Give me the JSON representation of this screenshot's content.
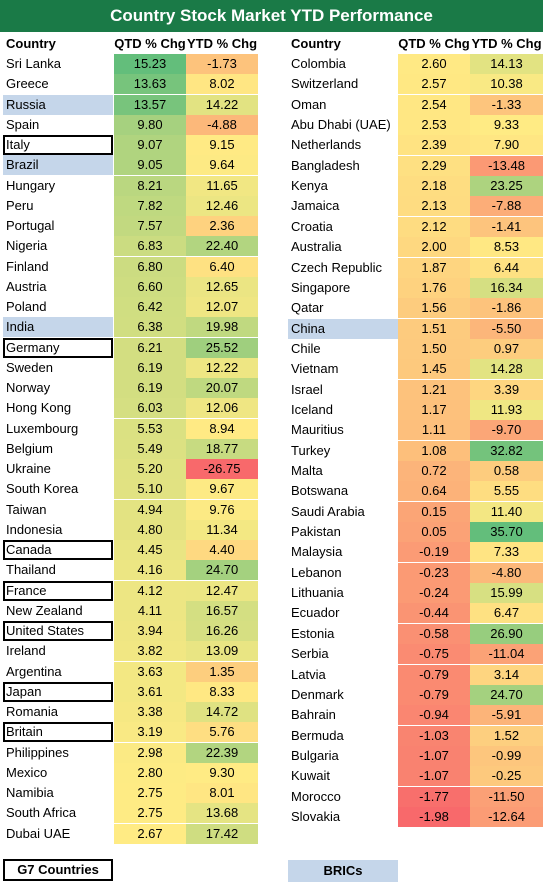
{
  "chart_data": {
    "type": "table",
    "title": "Country Stock Market YTD Performance",
    "columns": [
      "Country",
      "QTD % Chg",
      "YTD % Chg"
    ],
    "left_rows": [
      {
        "country": "Sri Lanka",
        "qtd": "15.23",
        "ytd": "-1.73",
        "group": ""
      },
      {
        "country": "Greece",
        "qtd": "13.63",
        "ytd": "8.02",
        "group": ""
      },
      {
        "country": "Russia",
        "qtd": "13.57",
        "ytd": "14.22",
        "group": "bric"
      },
      {
        "country": "Spain",
        "qtd": "9.80",
        "ytd": "-4.88",
        "group": ""
      },
      {
        "country": "Italy",
        "qtd": "9.07",
        "ytd": "9.15",
        "group": "g7"
      },
      {
        "country": "Brazil",
        "qtd": "9.05",
        "ytd": "9.64",
        "group": "bric"
      },
      {
        "country": "Hungary",
        "qtd": "8.21",
        "ytd": "11.65",
        "group": ""
      },
      {
        "country": "Peru",
        "qtd": "7.82",
        "ytd": "12.46",
        "group": ""
      },
      {
        "country": "Portugal",
        "qtd": "7.57",
        "ytd": "2.36",
        "group": ""
      },
      {
        "country": "Nigeria",
        "qtd": "6.83",
        "ytd": "22.40",
        "group": ""
      },
      {
        "country": "Finland",
        "qtd": "6.80",
        "ytd": "6.40",
        "group": ""
      },
      {
        "country": "Austria",
        "qtd": "6.60",
        "ytd": "12.65",
        "group": ""
      },
      {
        "country": "Poland",
        "qtd": "6.42",
        "ytd": "12.07",
        "group": ""
      },
      {
        "country": "India",
        "qtd": "6.38",
        "ytd": "19.98",
        "group": "bric"
      },
      {
        "country": "Germany",
        "qtd": "6.21",
        "ytd": "25.52",
        "group": "g7"
      },
      {
        "country": "Sweden",
        "qtd": "6.19",
        "ytd": "12.22",
        "group": ""
      },
      {
        "country": "Norway",
        "qtd": "6.19",
        "ytd": "20.07",
        "group": ""
      },
      {
        "country": "Hong Kong",
        "qtd": "6.03",
        "ytd": "12.06",
        "group": ""
      },
      {
        "country": "Luxembourg",
        "qtd": "5.53",
        "ytd": "8.94",
        "group": ""
      },
      {
        "country": "Belgium",
        "qtd": "5.49",
        "ytd": "18.77",
        "group": ""
      },
      {
        "country": "Ukraine",
        "qtd": "5.20",
        "ytd": "-26.75",
        "group": ""
      },
      {
        "country": "South Korea",
        "qtd": "5.10",
        "ytd": "9.67",
        "group": ""
      },
      {
        "country": "Taiwan",
        "qtd": "4.94",
        "ytd": "9.76",
        "group": ""
      },
      {
        "country": "Indonesia",
        "qtd": "4.80",
        "ytd": "11.34",
        "group": ""
      },
      {
        "country": "Canada",
        "qtd": "4.45",
        "ytd": "4.40",
        "group": "g7"
      },
      {
        "country": "Thailand",
        "qtd": "4.16",
        "ytd": "24.70",
        "group": ""
      },
      {
        "country": "France",
        "qtd": "4.12",
        "ytd": "12.47",
        "group": "g7"
      },
      {
        "country": "New Zealand",
        "qtd": "4.11",
        "ytd": "16.57",
        "group": ""
      },
      {
        "country": "United States",
        "qtd": "3.94",
        "ytd": "16.26",
        "group": "g7"
      },
      {
        "country": "Ireland",
        "qtd": "3.82",
        "ytd": "13.09",
        "group": ""
      },
      {
        "country": "Argentina",
        "qtd": "3.63",
        "ytd": "1.35",
        "group": ""
      },
      {
        "country": "Japan",
        "qtd": "3.61",
        "ytd": "8.33",
        "group": "g7"
      },
      {
        "country": "Romania",
        "qtd": "3.38",
        "ytd": "14.72",
        "group": ""
      },
      {
        "country": "Britain",
        "qtd": "3.19",
        "ytd": "5.76",
        "group": "g7"
      },
      {
        "country": "Philippines",
        "qtd": "2.98",
        "ytd": "22.39",
        "group": ""
      },
      {
        "country": "Mexico",
        "qtd": "2.80",
        "ytd": "9.30",
        "group": ""
      },
      {
        "country": "Namibia",
        "qtd": "2.75",
        "ytd": "8.01",
        "group": ""
      },
      {
        "country": "South Africa",
        "qtd": "2.75",
        "ytd": "13.68",
        "group": ""
      },
      {
        "country": "Dubai UAE",
        "qtd": "2.67",
        "ytd": "17.42",
        "group": ""
      }
    ],
    "right_rows": [
      {
        "country": "Colombia",
        "qtd": "2.60",
        "ytd": "14.13",
        "group": ""
      },
      {
        "country": "Switzerland",
        "qtd": "2.57",
        "ytd": "10.38",
        "group": ""
      },
      {
        "country": "Oman",
        "qtd": "2.54",
        "ytd": "-1.33",
        "group": ""
      },
      {
        "country": "Abu Dhabi (UAE)",
        "qtd": "2.53",
        "ytd": "9.33",
        "group": ""
      },
      {
        "country": "Netherlands",
        "qtd": "2.39",
        "ytd": "7.90",
        "group": ""
      },
      {
        "country": "Bangladesh",
        "qtd": "2.29",
        "ytd": "-13.48",
        "group": ""
      },
      {
        "country": "Kenya",
        "qtd": "2.18",
        "ytd": "23.25",
        "group": ""
      },
      {
        "country": "Jamaica",
        "qtd": "2.13",
        "ytd": "-7.88",
        "group": ""
      },
      {
        "country": "Croatia",
        "qtd": "2.12",
        "ytd": "-1.41",
        "group": ""
      },
      {
        "country": "Australia",
        "qtd": "2.00",
        "ytd": "8.53",
        "group": ""
      },
      {
        "country": "Czech Republic",
        "qtd": "1.87",
        "ytd": "6.44",
        "group": ""
      },
      {
        "country": "Singapore",
        "qtd": "1.76",
        "ytd": "16.34",
        "group": ""
      },
      {
        "country": "Qatar",
        "qtd": "1.56",
        "ytd": "-1.86",
        "group": ""
      },
      {
        "country": "China",
        "qtd": "1.51",
        "ytd": "-5.50",
        "group": "bric"
      },
      {
        "country": "Chile",
        "qtd": "1.50",
        "ytd": "0.97",
        "group": ""
      },
      {
        "country": "Vietnam",
        "qtd": "1.45",
        "ytd": "14.28",
        "group": ""
      },
      {
        "country": "Israel",
        "qtd": "1.21",
        "ytd": "3.39",
        "group": ""
      },
      {
        "country": "Iceland",
        "qtd": "1.17",
        "ytd": "11.93",
        "group": ""
      },
      {
        "country": "Mauritius",
        "qtd": "1.11",
        "ytd": "-9.70",
        "group": ""
      },
      {
        "country": "Turkey",
        "qtd": "1.08",
        "ytd": "32.82",
        "group": ""
      },
      {
        "country": "Malta",
        "qtd": "0.72",
        "ytd": "0.58",
        "group": ""
      },
      {
        "country": "Botswana",
        "qtd": "0.64",
        "ytd": "5.55",
        "group": ""
      },
      {
        "country": "Saudi Arabia",
        "qtd": "0.15",
        "ytd": "11.40",
        "group": ""
      },
      {
        "country": "Pakistan",
        "qtd": "0.05",
        "ytd": "35.70",
        "group": ""
      },
      {
        "country": "Malaysia",
        "qtd": "-0.19",
        "ytd": "7.33",
        "group": ""
      },
      {
        "country": "Lebanon",
        "qtd": "-0.23",
        "ytd": "-4.80",
        "group": ""
      },
      {
        "country": "Lithuania",
        "qtd": "-0.24",
        "ytd": "15.99",
        "group": ""
      },
      {
        "country": "Ecuador",
        "qtd": "-0.44",
        "ytd": "6.47",
        "group": ""
      },
      {
        "country": "Estonia",
        "qtd": "-0.58",
        "ytd": "26.90",
        "group": ""
      },
      {
        "country": "Serbia",
        "qtd": "-0.75",
        "ytd": "-11.04",
        "group": ""
      },
      {
        "country": "Latvia",
        "qtd": "-0.79",
        "ytd": "3.14",
        "group": ""
      },
      {
        "country": "Denmark",
        "qtd": "-0.79",
        "ytd": "24.70",
        "group": ""
      },
      {
        "country": "Bahrain",
        "qtd": "-0.94",
        "ytd": "-5.91",
        "group": ""
      },
      {
        "country": "Bermuda",
        "qtd": "-1.03",
        "ytd": "1.52",
        "group": ""
      },
      {
        "country": "Bulgaria",
        "qtd": "-1.07",
        "ytd": "-0.99",
        "group": ""
      },
      {
        "country": "Kuwait",
        "qtd": "-1.07",
        "ytd": "-0.25",
        "group": ""
      },
      {
        "country": "Morocco",
        "qtd": "-1.77",
        "ytd": "-11.50",
        "group": ""
      },
      {
        "country": "Slovakia",
        "qtd": "-1.98",
        "ytd": "-12.64",
        "group": ""
      }
    ],
    "legend": {
      "g7": "G7 Countries",
      "bric": "BRICs"
    },
    "colors": {
      "high": "#63be7b",
      "mid": "#ffeb84",
      "low": "#f8696b",
      "bric": "#c5d6ea",
      "title_bg": "#1a7a47"
    }
  }
}
